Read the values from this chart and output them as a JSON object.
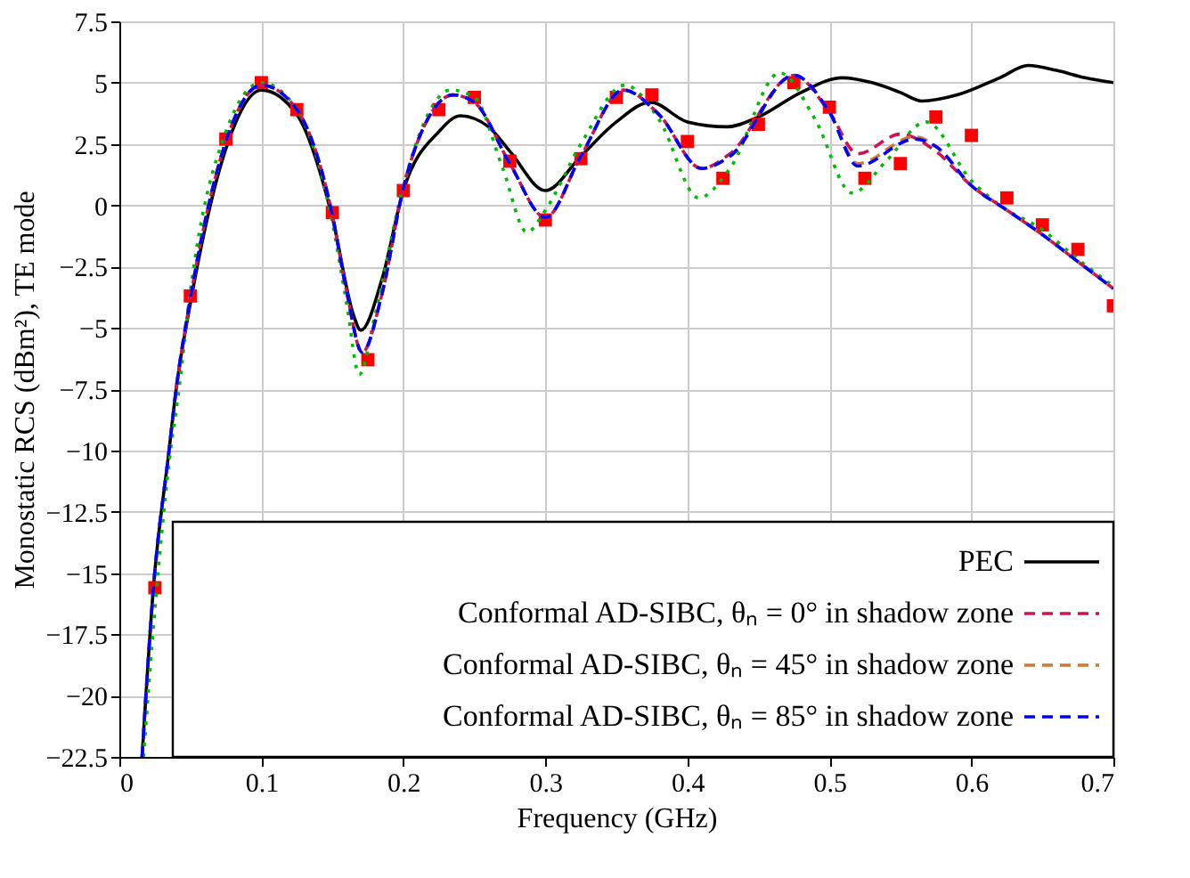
{
  "chart_data": {
    "type": "line",
    "xlabel": "Frequency (GHz)",
    "ylabel": "Monostatic RCS (dBm²),  TE mode",
    "xlim": [
      0,
      0.7
    ],
    "ylim": [
      -22.5,
      7.5
    ],
    "xticks": [
      0,
      0.1,
      0.2,
      0.3,
      0.4,
      0.5,
      0.6,
      0.7
    ],
    "yticks": [
      -22.5,
      -20,
      -17.5,
      -15,
      -12.5,
      -10,
      -7.5,
      -5,
      -2.5,
      0,
      2.5,
      5,
      7.5
    ],
    "grid": true,
    "legend": "bottom right",
    "series": [
      {
        "name": "PEC",
        "color": "#000000",
        "line_style": "solid",
        "marker": "none",
        "x": [
          0.016,
          0.024,
          0.035,
          0.04,
          0.05,
          0.075,
          0.1,
          0.125,
          0.15,
          0.165,
          0.17,
          0.185,
          0.2,
          0.225,
          0.24,
          0.26,
          0.275,
          0.3,
          0.325,
          0.35,
          0.374,
          0.4,
          0.428,
          0.45,
          0.48,
          0.509,
          0.53,
          0.55,
          0.565,
          0.59,
          0.62,
          0.64,
          0.66,
          0.68,
          0.7
        ],
        "values": [
          -22.5,
          -15.6,
          -10,
          -7.5,
          -4,
          2.3,
          4.7,
          3.7,
          -0.5,
          -4.5,
          -5.1,
          -3,
          0.6,
          3,
          3.65,
          3.2,
          2.2,
          0.6,
          2,
          3.4,
          4.2,
          3.4,
          3.2,
          3.6,
          4.6,
          5.2,
          5,
          4.6,
          4.25,
          4.5,
          5.2,
          5.7,
          5.5,
          5.2,
          5
        ]
      },
      {
        "type": "scatter",
        "color": "#ff0000",
        "marker": "square",
        "x": [
          0.025,
          0.05,
          0.075,
          0.1,
          0.125,
          0.15,
          0.175,
          0.2,
          0.225,
          0.25,
          0.275,
          0.3,
          0.325,
          0.35,
          0.375,
          0.4,
          0.425,
          0.45,
          0.475,
          0.5,
          0.525,
          0.55,
          0.575,
          0.6,
          0.625,
          0.65,
          0.675,
          0.7
        ],
        "values": [
          -15.6,
          -3.7,
          2.7,
          5,
          3.9,
          -0.3,
          -6.3,
          0.6,
          3.9,
          4.4,
          1.8,
          -0.6,
          1.9,
          4.4,
          4.5,
          2.6,
          1.1,
          3.3,
          5,
          4,
          1.1,
          1.7,
          3.6,
          2.85,
          0.3,
          -0.8,
          -1.8,
          -4.1
        ]
      },
      {
        "color": "#00bb00",
        "line_style": "dotted",
        "marker": "none",
        "x": [
          0.017,
          0.025,
          0.035,
          0.042,
          0.05,
          0.075,
          0.1,
          0.125,
          0.15,
          0.16,
          0.169,
          0.18,
          0.2,
          0.22,
          0.233,
          0.25,
          0.27,
          0.287,
          0.3,
          0.325,
          0.356,
          0.38,
          0.408,
          0.43,
          0.465,
          0.49,
          0.516,
          0.54,
          0.568,
          0.6,
          0.62,
          0.65,
          0.675,
          0.7
        ],
        "values": [
          -22.5,
          -16.5,
          -10.5,
          -7.5,
          -3.5,
          3,
          5,
          3.9,
          -0.7,
          -4,
          -6.9,
          -4.5,
          0.8,
          4,
          4.7,
          4.4,
          1.5,
          -1.1,
          -0.2,
          2.5,
          4.9,
          3.5,
          0.3,
          1.5,
          5.4,
          3.5,
          0.5,
          1.8,
          3.4,
          1,
          0,
          -1,
          -2.2,
          -3.3
        ]
      },
      {
        "name": "Conformal AD-SIBC, θₙ = 0° in shadow zone",
        "color": "#cc1451",
        "line_style": "dashed",
        "marker": "none",
        "x": [
          0.04,
          0.05,
          0.075,
          0.1,
          0.125,
          0.15,
          0.16,
          0.171,
          0.185,
          0.2,
          0.22,
          0.235,
          0.25,
          0.275,
          0.3,
          0.325,
          0.355,
          0.38,
          0.41,
          0.43,
          0.475,
          0.5,
          0.52,
          0.55,
          0.575,
          0.6,
          0.625,
          0.65,
          0.675,
          0.7
        ],
        "values": [
          -7.5,
          -3.8,
          2.6,
          4.9,
          3.9,
          -0.4,
          -3.5,
          -6,
          -3.6,
          0.7,
          3.8,
          4.5,
          4.2,
          1.7,
          -0.5,
          2,
          4.7,
          3.7,
          1.5,
          2.1,
          5.3,
          3.8,
          2.1,
          2.9,
          2.2,
          0.8,
          -0.2,
          -1.2,
          -2.3,
          -3.4
        ]
      },
      {
        "name": "Conformal AD-SIBC, θₙ = 45° in shadow zone",
        "color": "#cc7a33",
        "line_style": "dashed",
        "marker": "none",
        "x": [
          0.016,
          0.024,
          0.035,
          0.04,
          0.05,
          0.075,
          0.1,
          0.125,
          0.15,
          0.16,
          0.171,
          0.185,
          0.2,
          0.22,
          0.235,
          0.25,
          0.275,
          0.3,
          0.325,
          0.355,
          0.38,
          0.41,
          0.43,
          0.475,
          0.5,
          0.52,
          0.56,
          0.575,
          0.6,
          0.625,
          0.65,
          0.675,
          0.7
        ],
        "values": [
          -22.5,
          -15.6,
          -10,
          -7.5,
          -3.8,
          2.6,
          4.9,
          3.9,
          -0.4,
          -3.5,
          -6,
          -3.6,
          0.7,
          3.8,
          4.5,
          4.2,
          1.7,
          -0.5,
          2,
          4.7,
          3.7,
          1.5,
          2,
          5.3,
          3.8,
          1.7,
          2.8,
          2.4,
          0.8,
          -0.2,
          -1.2,
          -2.3,
          -3.4
        ]
      },
      {
        "name": "Conformal AD-SIBC, θₙ = 85° in shadow zone",
        "color": "#0000ff",
        "line_style": "dashed",
        "marker": "none",
        "x": [
          0.016,
          0.024,
          0.035,
          0.04,
          0.05,
          0.075,
          0.1,
          0.125,
          0.15,
          0.16,
          0.171,
          0.185,
          0.2,
          0.22,
          0.235,
          0.25,
          0.275,
          0.3,
          0.325,
          0.355,
          0.38,
          0.41,
          0.43,
          0.475,
          0.5,
          0.52,
          0.56,
          0.575,
          0.6,
          0.625,
          0.65,
          0.675,
          0.7
        ],
        "values": [
          -22.5,
          -15.6,
          -10,
          -7.5,
          -3.8,
          2.6,
          4.9,
          3.9,
          -0.4,
          -3.5,
          -6,
          -3.6,
          0.7,
          3.8,
          4.5,
          4.2,
          1.7,
          -0.5,
          2,
          4.7,
          3.7,
          1.5,
          2,
          5.3,
          3.8,
          1.6,
          2.7,
          2.4,
          0.8,
          -0.2,
          -1.2,
          -2.3,
          -3.4
        ]
      }
    ]
  }
}
